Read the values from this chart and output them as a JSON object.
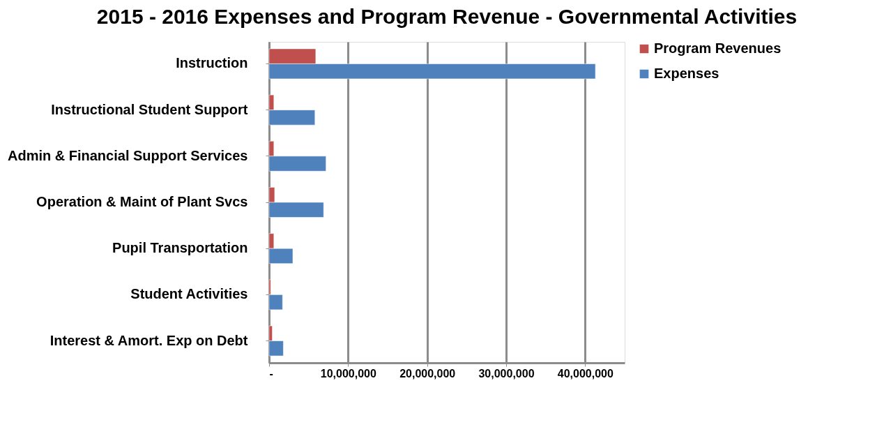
{
  "chart_data": {
    "type": "bar",
    "orientation": "horizontal",
    "title": "2015 - 2016 Expenses and Program Revenue - Governmental Activities",
    "categories": [
      "Instruction",
      "Instructional Student Support",
      "Admin & Financial Support Services",
      "Operation & Maint of Plant Svcs",
      "Pupil Transportation",
      "Student Activities",
      "Interest & Amort. Exp on Debt"
    ],
    "series": [
      {
        "name": "Program Revenues",
        "color": "#c0504d",
        "values": [
          5900000,
          600000,
          600000,
          700000,
          600000,
          200000,
          400000
        ]
      },
      {
        "name": "Expenses",
        "color": "#4f81bd",
        "values": [
          41300000,
          5800000,
          7200000,
          6900000,
          3000000,
          1700000,
          1800000
        ]
      }
    ],
    "xlim": [
      0,
      45000000
    ],
    "xticks": [
      {
        "value": 0,
        "label": "-"
      },
      {
        "value": 10000000,
        "label": "10,000,000"
      },
      {
        "value": 20000000,
        "label": "20,000,000"
      },
      {
        "value": 30000000,
        "label": "30,000,000"
      },
      {
        "value": 40000000,
        "label": "40,000,000"
      }
    ],
    "grid": "x",
    "legend": "right"
  }
}
